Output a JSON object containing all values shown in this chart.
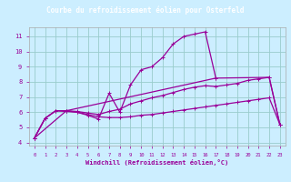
{
  "title": "Courbe du refroidissement éolien pour Osterfeld",
  "xlabel": "Windchill (Refroidissement éolien,°C)",
  "xlim": [
    -0.5,
    23.5
  ],
  "ylim": [
    3.8,
    11.6
  ],
  "xticks": [
    0,
    1,
    2,
    3,
    4,
    5,
    6,
    7,
    8,
    9,
    10,
    11,
    12,
    13,
    14,
    15,
    16,
    17,
    18,
    19,
    20,
    21,
    22,
    23
  ],
  "yticks": [
    4,
    5,
    6,
    7,
    8,
    9,
    10,
    11
  ],
  "bg_color": "#cceeff",
  "grid_color": "#99cccc",
  "line_color": "#990099",
  "title_bg": "#3333aa",
  "title_fg": "#ffffff",
  "line1_x": [
    0,
    1,
    2,
    3,
    4,
    5,
    6,
    7,
    8,
    9,
    10,
    11,
    12,
    13,
    14,
    15,
    16,
    17
  ],
  "line1_y": [
    4.3,
    5.6,
    6.1,
    6.1,
    6.0,
    5.8,
    5.55,
    7.25,
    6.0,
    7.8,
    8.8,
    9.0,
    9.6,
    10.5,
    11.0,
    11.15,
    11.3,
    8.25
  ],
  "line2_x": [
    0,
    1,
    2,
    3,
    4,
    5,
    6,
    7,
    8,
    9,
    10,
    11,
    12,
    13,
    14,
    15,
    16,
    17,
    18,
    19,
    20,
    21,
    22,
    23
  ],
  "line2_y": [
    4.3,
    5.6,
    6.1,
    6.05,
    6.0,
    5.85,
    5.7,
    5.65,
    5.65,
    5.7,
    5.8,
    5.85,
    5.95,
    6.05,
    6.15,
    6.25,
    6.35,
    6.45,
    6.55,
    6.65,
    6.75,
    6.85,
    6.95,
    5.2
  ],
  "line3_x": [
    0,
    1,
    2,
    3,
    4,
    5,
    6,
    7,
    8,
    9,
    10,
    11,
    12,
    13,
    14,
    15,
    16,
    17,
    18,
    19,
    20,
    21,
    22,
    23
  ],
  "line3_y": [
    4.3,
    5.6,
    6.1,
    6.1,
    6.05,
    5.95,
    5.85,
    6.05,
    6.2,
    6.55,
    6.75,
    6.95,
    7.1,
    7.3,
    7.5,
    7.65,
    7.75,
    7.7,
    7.8,
    7.9,
    8.1,
    8.2,
    8.3,
    5.2
  ],
  "line4_x": [
    0,
    3,
    17,
    22,
    23
  ],
  "line4_y": [
    4.3,
    6.1,
    8.25,
    8.3,
    5.2
  ]
}
